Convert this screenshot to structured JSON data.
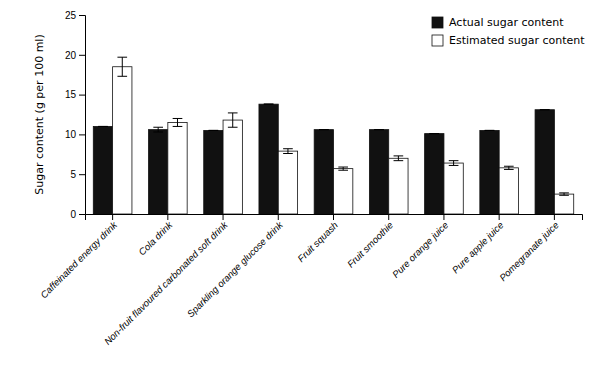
{
  "chart_data": {
    "type": "bar",
    "categories": [
      "Caffeinated energy drink",
      "Cola drink",
      "Non-fruit flavoured carbonated soft drink",
      "Sparkling orange glucose drink",
      "Fruit squash",
      "Fruit smoothie",
      "Pure orange juice",
      "Pure apple juice",
      "Pomegranate juice"
    ],
    "series": [
      {
        "name": "Actual sugar content",
        "color": "#111111",
        "values": [
          11.0,
          10.6,
          10.5,
          13.8,
          10.6,
          10.6,
          10.1,
          10.5,
          13.1
        ],
        "errors": [
          0.0,
          0.3,
          0.0,
          0.0,
          0.0,
          0.0,
          0.0,
          0.0,
          0.0
        ]
      },
      {
        "name": "Estimated sugar content",
        "color": "#ffffff",
        "values": [
          18.5,
          11.5,
          11.8,
          7.9,
          5.7,
          7.0,
          6.4,
          5.8,
          2.5
        ],
        "errors": [
          1.2,
          0.5,
          0.9,
          0.3,
          0.2,
          0.3,
          0.3,
          0.2,
          0.15
        ]
      }
    ],
    "ylabel": "Sugar content (g per 100 ml)",
    "ylim": [
      0,
      25
    ],
    "yticks": [
      0,
      5,
      10,
      15,
      20,
      25
    ],
    "legend": "upper right",
    "grid": false
  }
}
